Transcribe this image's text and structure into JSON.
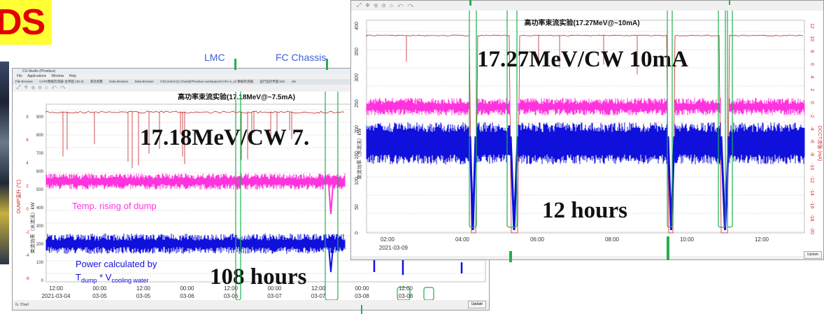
{
  "badge": {
    "text": "DS"
  },
  "labels": {
    "lmc": "LMC",
    "fc_chassis": "FC Chassis"
  },
  "left_window": {
    "app_title": "CS-Studio (Phoebus)",
    "menu": [
      "File",
      "Applications",
      "Window",
      "Help"
    ],
    "tabs": [
      "File Browser",
      "CAFE数据检测器-主界面 (4D.0)",
      "束流测量",
      "Data Browser",
      "Data Browser",
      "CSControl (2) Chart@Phoebus workspace/CAFe-4_10 数据检测器",
      "运行监控界面.bob",
      "Jes"
    ],
    "chart_title": "高功率束流实验(17.18MeV@~7.5mA)",
    "overlay_energy": "17.18MeV/CW 7.",
    "overlay_duration": "108 hours",
    "annotation_temp": "Temp. rising of dump",
    "annotation_power_line1": "Power calculated by",
    "annotation_power_line2_a": "T",
    "annotation_power_line2_sub_a": "dump",
    "annotation_power_line2_b": " * V",
    "annotation_power_line2_sub_b": "cooling water",
    "y_axis_left_label": "DUMP温升 (℃)",
    "y_axis_mid_label": "束流功率（水流法）kW",
    "y_ticks_temp": [
      "8",
      "6",
      "4",
      "2",
      "0",
      "-2",
      "-4",
      "-6"
    ],
    "y_ticks_power": [
      "900",
      "800",
      "700",
      "600",
      "500",
      "400",
      "300",
      "200",
      "100",
      "0"
    ],
    "x_ticks_time": [
      "12:00",
      "00:00",
      "12:00",
      "00:00",
      "12:00",
      "00:00",
      "12:00",
      "00:00",
      "12:00"
    ],
    "x_ticks_date": [
      "2021-03-04",
      "03-05",
      "03-05",
      "03-06",
      "03-06",
      "03-07",
      "03-07",
      "03-08",
      "03-08"
    ],
    "status": "G. Chart",
    "update_button": "Update"
  },
  "right_window": {
    "chart_title": "高功率束流实验(17.27MeV@~10mA)",
    "overlay_energy": "17.27MeV/CW 10mA",
    "overlay_duration": "12 hours",
    "y_axis_left_label": "束流功率（水流法）kW",
    "y_axis_right_label": "DCCT流强 (mA)",
    "y_ticks_left": [
      "400",
      "350",
      "300",
      "250",
      "200",
      "150",
      "100",
      "50",
      "0"
    ],
    "y_ticks_right": [
      "12",
      "10",
      "8",
      "6",
      "4",
      "2",
      "0",
      "-2",
      "-4",
      "-6",
      "-8",
      "-10",
      "-12",
      "-14",
      "-16",
      "-18",
      "-20"
    ],
    "x_ticks_time": [
      "02:00",
      "04:00",
      "06:00",
      "08:00",
      "10:00",
      "12:00"
    ],
    "x_tick_date": "2021-03-09",
    "update_button": "Update"
  },
  "colors": {
    "temp_trace": "#c0282a",
    "power_pink": "#ff33dd",
    "current_blue": "#1010dd",
    "marker_green": "#20b050",
    "badge_bg": "#ffff33",
    "badge_text": "#e00000",
    "axis_text": "#333333",
    "right_axis": "#d03030"
  }
}
